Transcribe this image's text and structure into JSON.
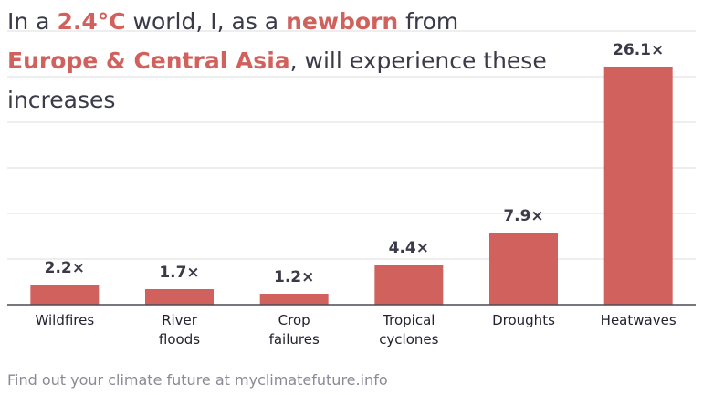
{
  "headline": {
    "line1": {
      "pre": "In a ",
      "warming": "2.4°C",
      "mid": " world, I, as a ",
      "age": "newborn",
      "post": " from"
    },
    "line2": {
      "region": "Europe & Central Asia",
      "post": ", will experience these"
    },
    "line3": "increases"
  },
  "footer": "Find out your climate future at myclimatefuture.info",
  "colors": {
    "bar": "#d1615d",
    "highlight": "#d1615d",
    "text": "#3a3a48",
    "grid": "#dddddd",
    "footer": "#8a8a96"
  },
  "chart_data": {
    "type": "bar",
    "categories": [
      [
        "Wildfires"
      ],
      [
        "River",
        "floods"
      ],
      [
        "Crop",
        "failures"
      ],
      [
        "Tropical",
        "cyclones"
      ],
      [
        "Droughts"
      ],
      [
        "Heatwaves"
      ]
    ],
    "values": [
      2.2,
      1.7,
      1.2,
      4.4,
      7.9,
      26.1
    ],
    "labels": [
      "2.2×",
      "1.7×",
      "1.2×",
      "4.4×",
      "7.9×",
      "26.1×"
    ],
    "ylim": [
      0,
      30
    ],
    "grid": true,
    "title": "",
    "xlabel": "",
    "ylabel": ""
  }
}
